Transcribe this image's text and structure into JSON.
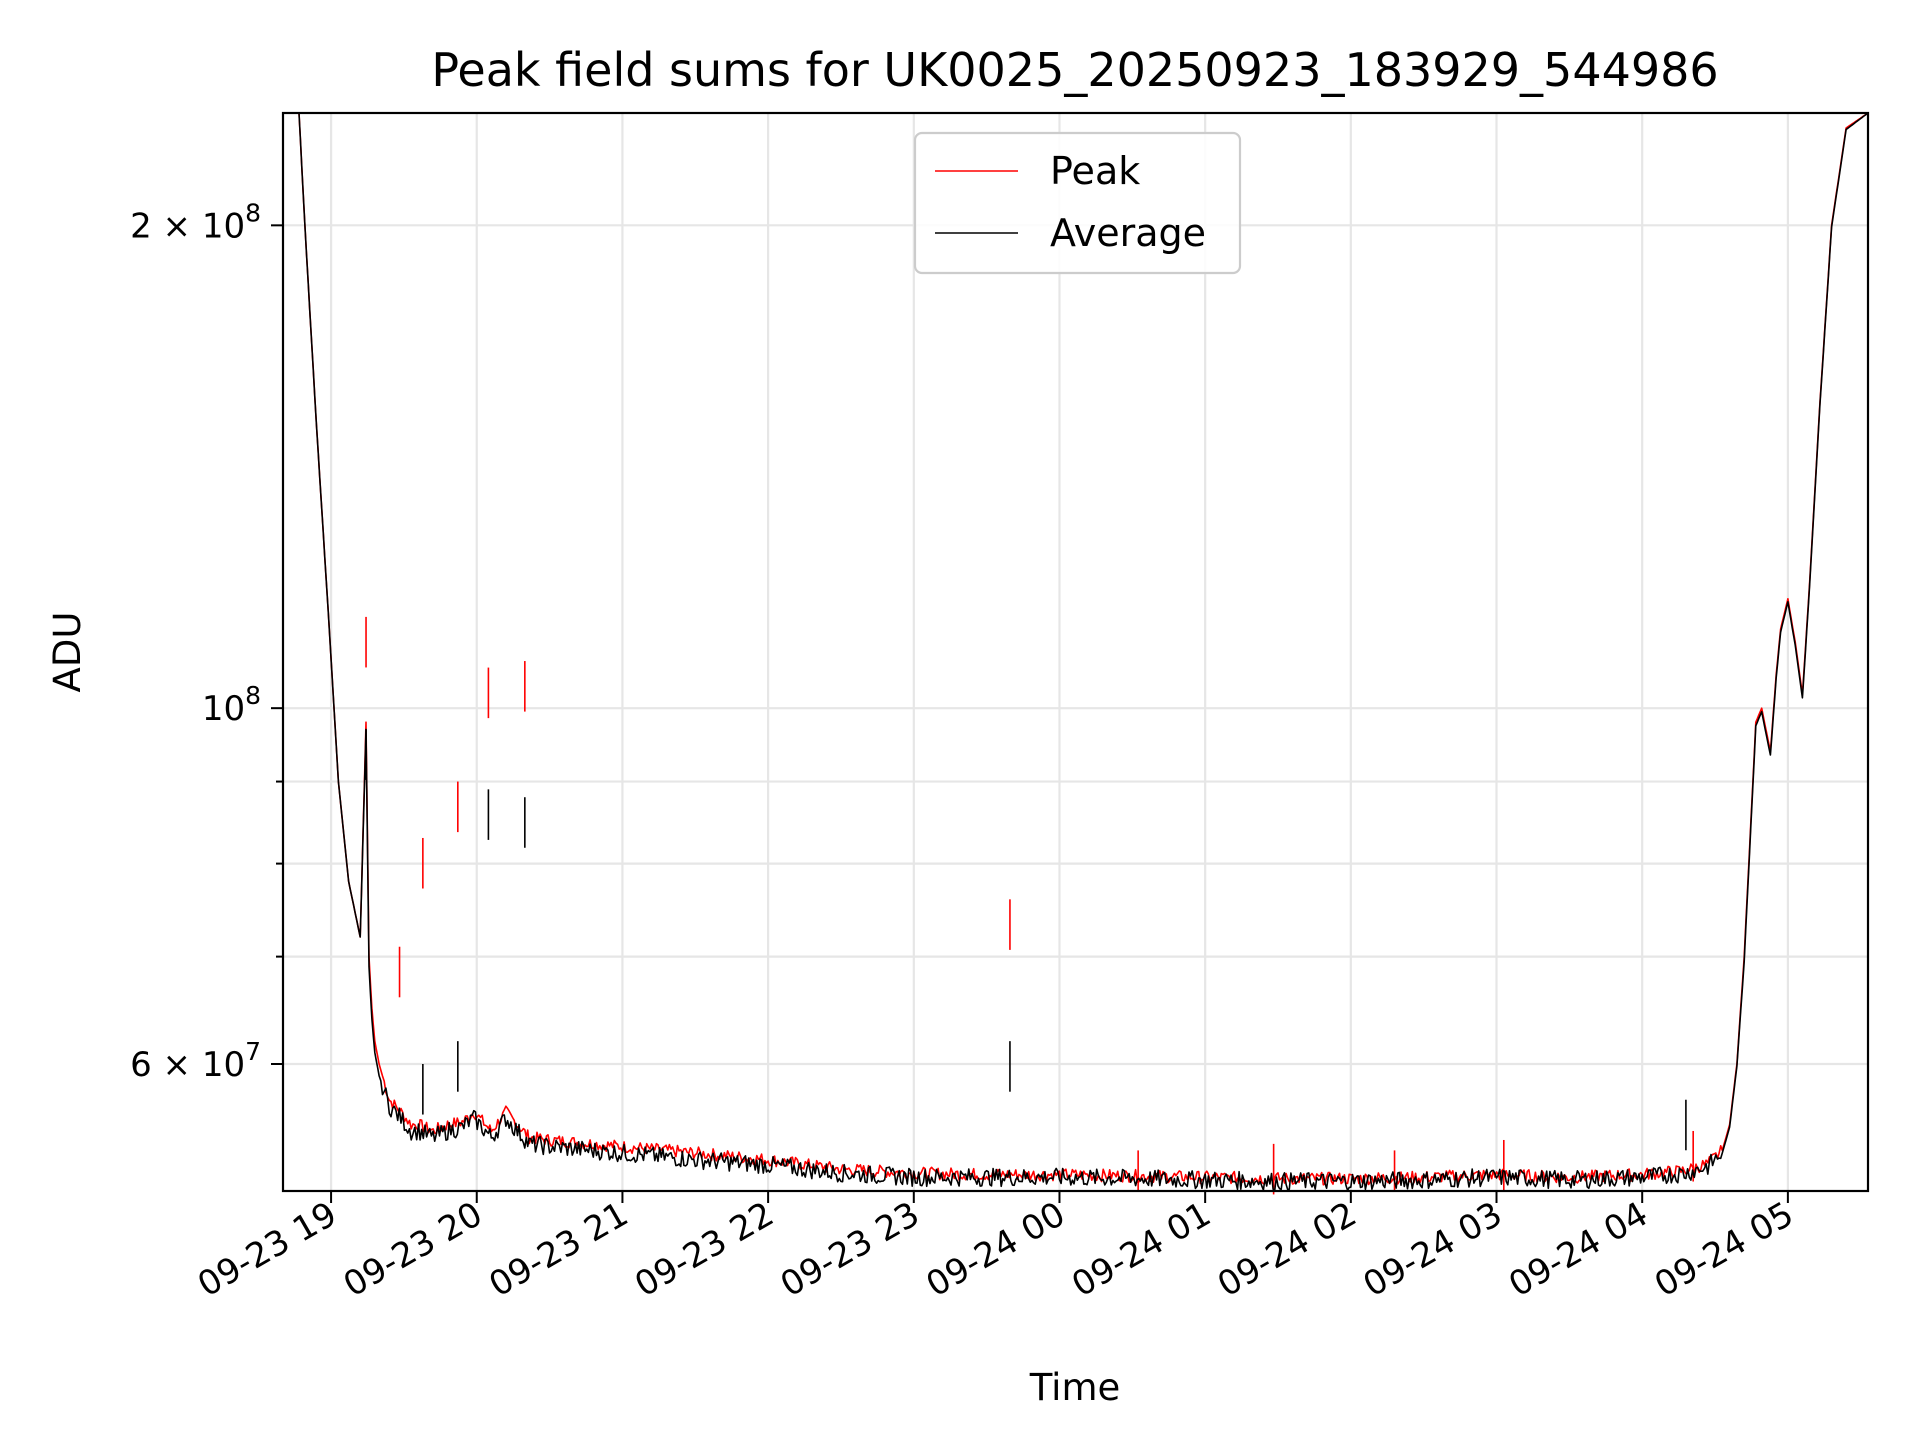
{
  "chart_data": {
    "type": "line",
    "title": "Peak field sums for UK0025_20250923_183929_544986",
    "xlabel": "Time",
    "ylabel": "ADU",
    "yscale": "log",
    "ylim": [
      50000000,
      235000000
    ],
    "xlim_hours": [
      -0.33,
      10.55
    ],
    "grid": true,
    "legend_position": "upper center",
    "x_tick_labels": [
      "09-23 19",
      "09-23 20",
      "09-23 21",
      "09-23 22",
      "09-23 23",
      "09-24 00",
      "09-24 01",
      "09-24 02",
      "09-24 03",
      "09-24 04",
      "09-24 05"
    ],
    "x_tick_hours": [
      0,
      1,
      2,
      3,
      4,
      5,
      6,
      7,
      8,
      9,
      10
    ],
    "x_tick_note": "hours since 09-23 19:00",
    "y_major_ticks": [
      {
        "value": 60000000,
        "mantissa": "6",
        "exp": "7"
      },
      {
        "value": 100000000,
        "mantissa": "",
        "exp": "8"
      },
      {
        "value": 200000000,
        "mantissa": "2",
        "exp": "8"
      }
    ],
    "y_minor_ticks": [
      70000000,
      80000000,
      90000000
    ],
    "series": [
      {
        "name": "Peak",
        "color": "#ff0000",
        "x_hours": [
          -0.33,
          -0.22,
          -0.18,
          -0.1,
          -0.02,
          0.05,
          0.12,
          0.2,
          0.24,
          0.26,
          0.28,
          0.3,
          0.33,
          0.4,
          0.48,
          0.55,
          0.6,
          0.7,
          0.8,
          0.9,
          0.98,
          1.06,
          1.1,
          1.2,
          1.28,
          1.32,
          1.36,
          1.5,
          1.8,
          2.0,
          2.5,
          3.0,
          3.5,
          4.0,
          4.5,
          5.0,
          5.5,
          6.0,
          6.5,
          7.0,
          7.5,
          8.0,
          8.5,
          9.0,
          9.3,
          9.45,
          9.55,
          9.6,
          9.65,
          9.7,
          9.78,
          9.82,
          9.88,
          9.92,
          9.95,
          10.0,
          10.05,
          10.1,
          10.15,
          10.22,
          10.3,
          10.4,
          10.55
        ],
        "y": [
          235000000,
          235000000,
          200000000,
          150000000,
          115000000,
          90000000,
          78000000,
          72000000,
          98000000,
          70000000,
          65000000,
          62000000,
          60000000,
          57000000,
          56000000,
          55000000,
          55000000,
          54500000,
          55000000,
          55200000,
          56000000,
          55000000,
          54500000,
          56000000,
          55000000,
          54500000,
          54000000,
          53800000,
          53500000,
          53300000,
          52800000,
          52300000,
          51600000,
          51300000,
          51200000,
          51200000,
          51100000,
          51000000,
          50900000,
          50900000,
          51000000,
          51200000,
          51000000,
          51200000,
          51500000,
          52000000,
          53000000,
          55000000,
          60000000,
          70000000,
          98000000,
          100000000,
          94000000,
          105000000,
          112000000,
          117000000,
          110000000,
          102000000,
          120000000,
          155000000,
          200000000,
          230000000,
          235000000
        ],
        "spikes": [
          {
            "x": 0.24,
            "y": 114000000
          },
          {
            "x": 0.47,
            "y": 71000000
          },
          {
            "x": 0.63,
            "y": 83000000
          },
          {
            "x": 0.87,
            "y": 90000000
          },
          {
            "x": 1.08,
            "y": 106000000
          },
          {
            "x": 1.33,
            "y": 107000000
          },
          {
            "x": 4.66,
            "y": 76000000
          },
          {
            "x": 5.54,
            "y": 53000000
          },
          {
            "x": 6.47,
            "y": 53500000
          },
          {
            "x": 7.3,
            "y": 53000000
          },
          {
            "x": 8.05,
            "y": 53800000
          },
          {
            "x": 9.35,
            "y": 54500000
          }
        ]
      },
      {
        "name": "Average",
        "color": "#000000",
        "x_hours": [
          -0.33,
          -0.22,
          -0.18,
          -0.1,
          -0.02,
          0.05,
          0.12,
          0.2,
          0.24,
          0.26,
          0.28,
          0.3,
          0.33,
          0.4,
          0.48,
          0.55,
          0.6,
          0.7,
          0.8,
          0.9,
          0.98,
          1.06,
          1.1,
          1.2,
          1.28,
          1.32,
          1.36,
          1.5,
          1.8,
          2.0,
          2.5,
          3.0,
          3.5,
          4.0,
          4.5,
          5.0,
          5.5,
          6.0,
          6.5,
          7.0,
          7.5,
          8.0,
          8.5,
          9.0,
          9.3,
          9.45,
          9.55,
          9.6,
          9.65,
          9.7,
          9.78,
          9.82,
          9.88,
          9.92,
          9.95,
          10.0,
          10.05,
          10.1,
          10.15,
          10.22,
          10.3,
          10.4,
          10.55
        ],
        "y": [
          235000000,
          235000000,
          200000000,
          150000000,
          115000000,
          90000000,
          78000000,
          72000000,
          97000000,
          69000000,
          64000000,
          61000000,
          59000000,
          56500000,
          55500000,
          54500000,
          54500000,
          54000000,
          54500000,
          54800000,
          55500000,
          54500000,
          54000000,
          55500000,
          54500000,
          54000000,
          53500000,
          53300000,
          53000000,
          52800000,
          52300000,
          51900000,
          51300000,
          51000000,
          51000000,
          51000000,
          50900000,
          50800000,
          50700000,
          50700000,
          50800000,
          51000000,
          50800000,
          51000000,
          51300000,
          51800000,
          52800000,
          54800000,
          59800000,
          69500000,
          97500000,
          99500000,
          93500000,
          104500000,
          111500000,
          116500000,
          109500000,
          101500000,
          119500000,
          154500000,
          199500000,
          229500000,
          235000000
        ],
        "spikes": [
          {
            "x": 0.24,
            "y": 97000000
          },
          {
            "x": 0.63,
            "y": 60000000
          },
          {
            "x": 0.87,
            "y": 62000000
          },
          {
            "x": 1.08,
            "y": 89000000
          },
          {
            "x": 1.33,
            "y": 88000000
          },
          {
            "x": 4.66,
            "y": 62000000
          },
          {
            "x": 9.3,
            "y": 57000000
          }
        ]
      }
    ]
  }
}
